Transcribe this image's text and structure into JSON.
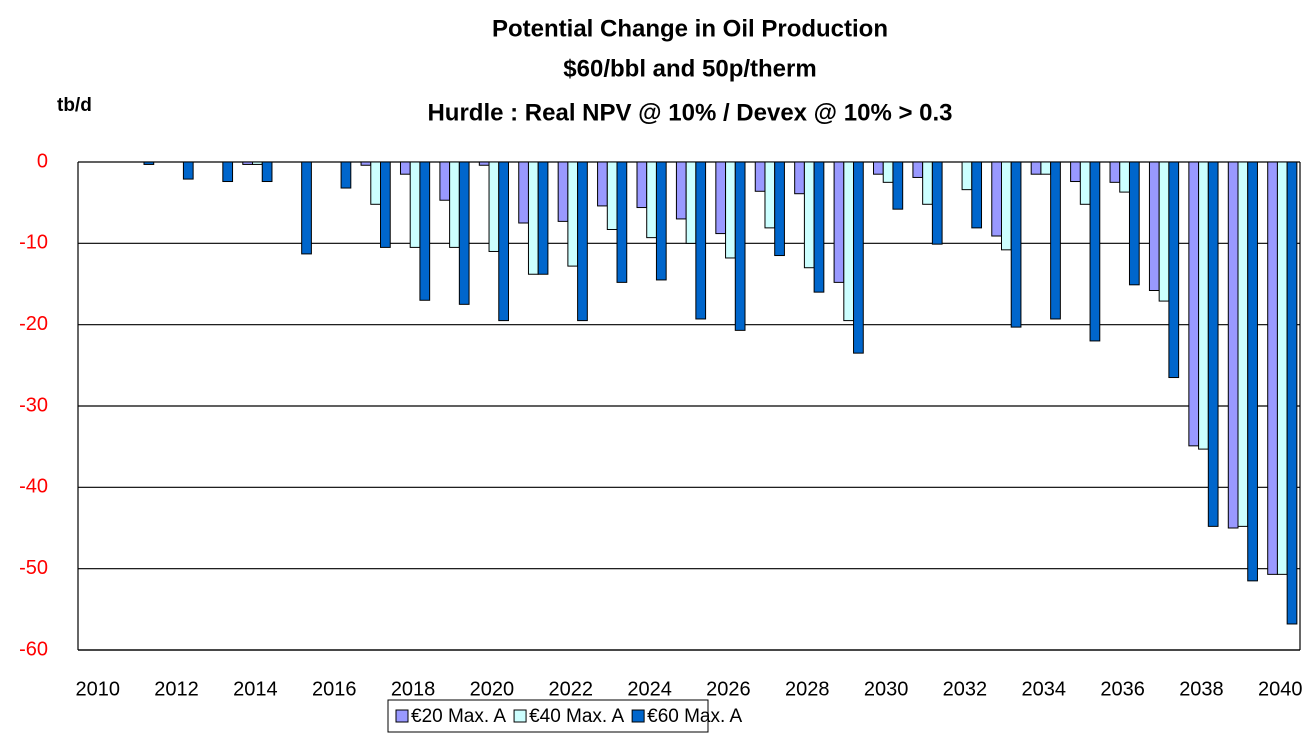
{
  "chart_data": {
    "type": "bar",
    "title": [
      "Potential Change in Oil Production",
      "$60/bbl and 50p/therm",
      "Hurdle : Real NPV @ 10% /  Devex @ 10% > 0.3"
    ],
    "y_label": "tb/d",
    "categories": [
      "2010",
      null,
      "2012",
      null,
      "2014",
      null,
      "2016",
      null,
      "2018",
      null,
      "2020",
      null,
      "2022",
      null,
      "2024",
      null,
      "2026",
      null,
      "2028",
      null,
      "2030",
      null,
      "2032",
      null,
      "2034",
      null,
      "2036",
      null,
      "2038",
      null,
      "2040"
    ],
    "series": [
      {
        "name": "€20 Max. A",
        "color": "#9999ff",
        "values": [
          0,
          0,
          0,
          0,
          -0.3,
          0,
          0,
          -0.4,
          -1.5,
          -4.7,
          -0.4,
          -7.5,
          -7.3,
          -5.4,
          -5.6,
          -7,
          -8.8,
          -3.6,
          -3.9,
          -14.8,
          -1.5,
          -1.9,
          0,
          -9.1,
          -1.5,
          -2.4,
          -2.5,
          -15.8,
          -34.9,
          -45,
          -50.7
        ]
      },
      {
        "name": "€40 Max. A",
        "color": "#ccffff",
        "values": [
          0,
          0,
          0,
          0,
          -0.3,
          0,
          0,
          -5.2,
          -10.5,
          -10.5,
          -11,
          -13.8,
          -12.8,
          -8.3,
          -9.3,
          -10,
          -11.8,
          -8.1,
          -13,
          -19.5,
          -2.5,
          -5.2,
          -3.4,
          -10.8,
          -1.5,
          -5.2,
          -3.7,
          -17.1,
          -35.3,
          -44.8,
          -50.7
        ]
      },
      {
        "name": "€60 Max. A",
        "color": "#0066cc",
        "values": [
          0,
          -0.3,
          -2.1,
          -2.4,
          -2.4,
          -11.3,
          -3.2,
          -10.5,
          -17,
          -17.5,
          -19.5,
          -13.8,
          -19.5,
          -14.8,
          -14.5,
          -19.3,
          -20.7,
          -11.5,
          -16,
          -23.5,
          -5.8,
          -10.1,
          -8.1,
          -20.3,
          -19.3,
          -22,
          -15.1,
          -26.5,
          -44.8,
          -51.5,
          -56.8
        ]
      }
    ],
    "ylim": [
      -60,
      0
    ],
    "yticks": [
      -60,
      -50,
      -40,
      -30,
      -20,
      -10,
      0
    ],
    "grid": true,
    "legend": "bottom"
  }
}
